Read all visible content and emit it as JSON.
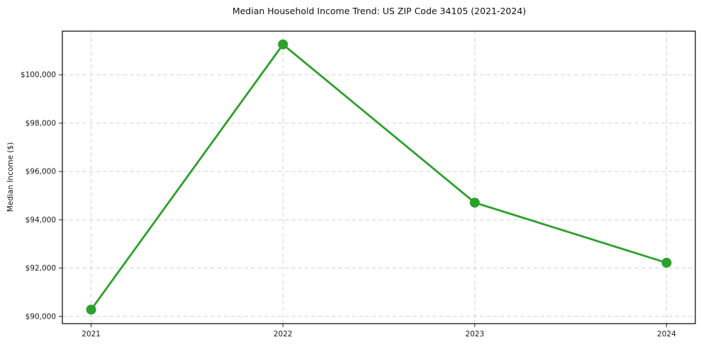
{
  "chart_data": {
    "type": "line",
    "title": "Median Household Income Trend: US ZIP Code 34105 (2021-2024)",
    "xlabel": "",
    "ylabel": "Median Income ($)",
    "x": [
      2021,
      2022,
      2023,
      2024
    ],
    "x_tick_labels": [
      "2021",
      "2022",
      "2023",
      "2024"
    ],
    "series": [
      {
        "name": "median-household-income",
        "values": [
          90280,
          101260,
          94710,
          92220
        ]
      }
    ],
    "y_ticks": [
      90000,
      92000,
      94000,
      96000,
      98000,
      100000
    ],
    "y_tick_labels": [
      "$90,000",
      "$92,000",
      "$94,000",
      "$96,000",
      "$98,000",
      "$100,000"
    ],
    "xlim": [
      2020.85,
      2024.15
    ],
    "ylim": [
      89700,
      101810
    ],
    "grid": true,
    "grid_style": "dashed",
    "legend": "none",
    "marker": "circle",
    "colors": {
      "line": "#2ca02c",
      "marker": "#2ca02c",
      "grid": "#d2d2d2",
      "spine": "#000000",
      "tick": "#262626",
      "text": "#1a1a1a",
      "background": "#ffffff"
    }
  }
}
